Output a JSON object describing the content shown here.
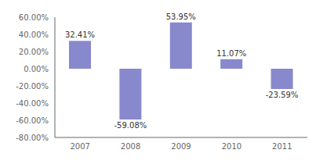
{
  "chart_data": {
    "type": "bar",
    "categories": [
      "2007",
      "2008",
      "2009",
      "2010",
      "2011"
    ],
    "values": [
      32.41,
      -59.08,
      53.95,
      11.07,
      -23.59
    ],
    "value_labels": [
      "32.41%",
      "-59.08%",
      "53.95%",
      "11.07%",
      "-23.59%"
    ],
    "color": "#8888CC",
    "ylim": [
      -80,
      60
    ],
    "yticks": [
      {
        "value": -80,
        "label": "-80.00%"
      },
      {
        "value": -60,
        "label": "-60.00%"
      },
      {
        "value": -40,
        "label": "-40.00%"
      },
      {
        "value": -20,
        "label": "-20.00%"
      },
      {
        "value": 0,
        "label": "0.00%"
      },
      {
        "value": 20,
        "label": "20.00%"
      },
      {
        "value": 40,
        "label": "40.00%"
      },
      {
        "value": 60,
        "label": "60.00%"
      }
    ],
    "data_labels": true,
    "grid": false
  }
}
